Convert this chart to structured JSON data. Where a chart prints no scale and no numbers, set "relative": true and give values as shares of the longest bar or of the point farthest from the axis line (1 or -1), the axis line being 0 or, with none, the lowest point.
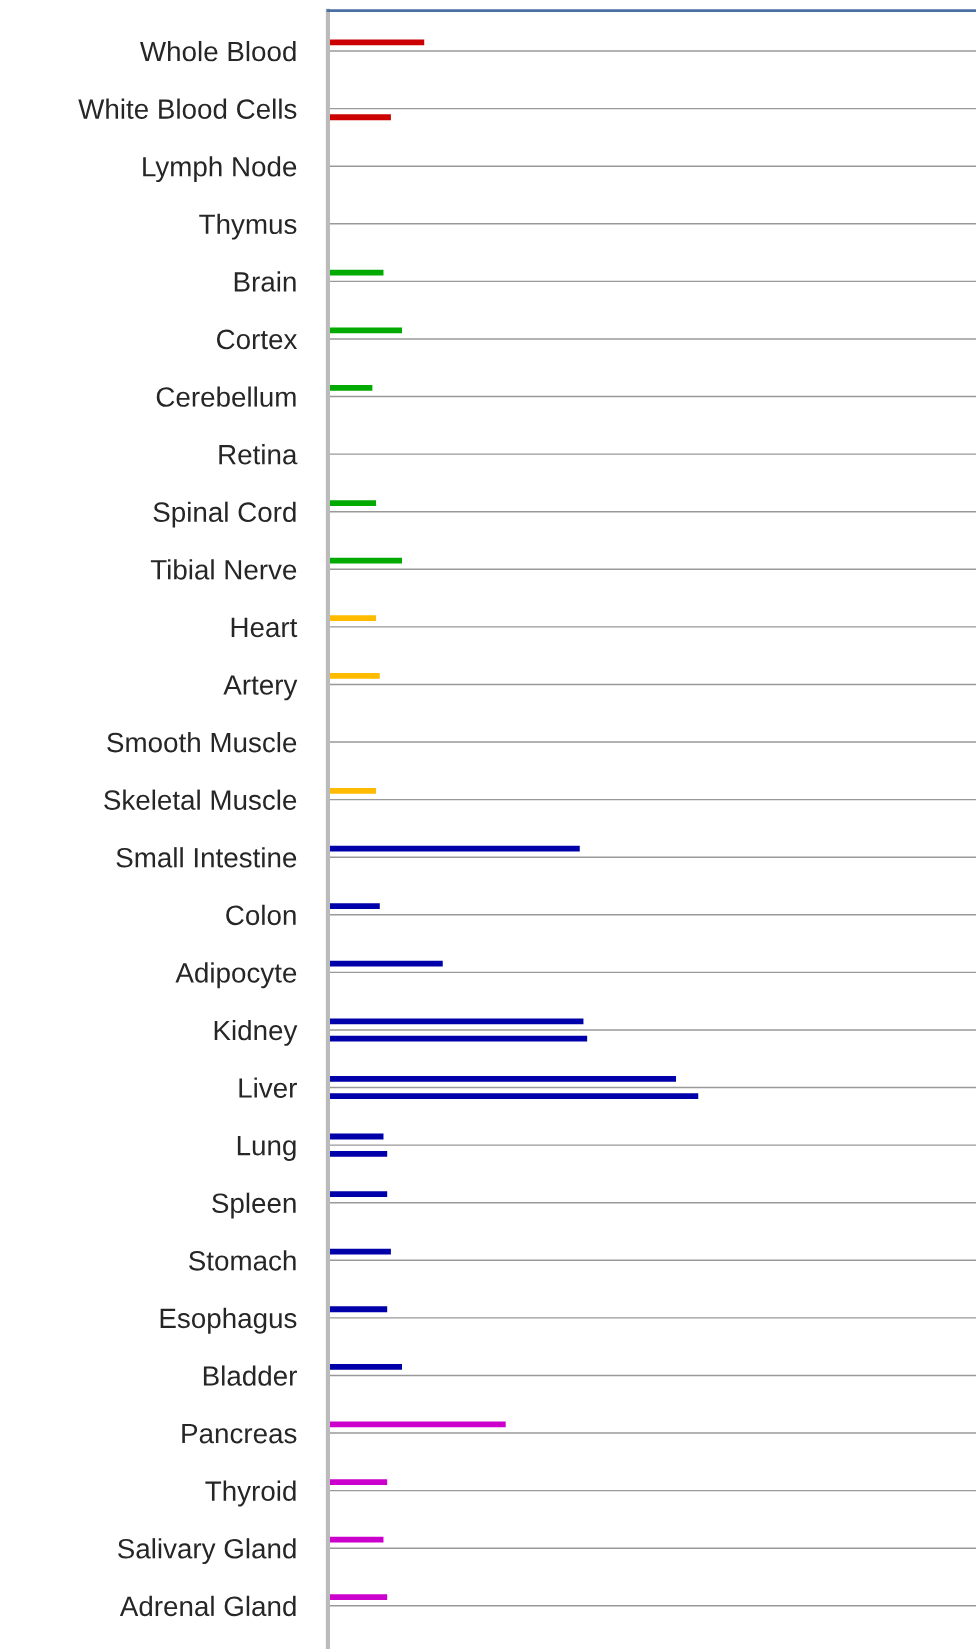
{
  "chart_data": {
    "type": "bar",
    "orientation": "horizontal",
    "relative": true,
    "grid": "y",
    "legend": false,
    "categories": [
      "Whole Blood",
      "White Blood Cells",
      "Lymph Node",
      "Thymus",
      "Brain",
      "Cortex",
      "Cerebellum",
      "Retina",
      "Spinal Cord",
      "Tibial Nerve",
      "Heart",
      "Artery",
      "Smooth Muscle",
      "Skeletal Muscle",
      "Small Intestine",
      "Colon",
      "Adipocyte",
      "Kidney",
      "Liver",
      "Lung",
      "Spleen",
      "Stomach",
      "Esophagus",
      "Bladder",
      "Pancreas",
      "Thyroid",
      "Salivary Gland",
      "Adrenal Gland"
    ],
    "series": [
      {
        "values": [
          0.26,
          null,
          null,
          null,
          0.15,
          0.2,
          0.12,
          null,
          0.13,
          0.2,
          0.13,
          0.14,
          null,
          0.13,
          0.68,
          0.14,
          0.31,
          0.69,
          0.94,
          0.15,
          0.16,
          0.17,
          0.16,
          0.2,
          0.48,
          0.16,
          0.15,
          0.16
        ],
        "colors": [
          "#cc0000",
          "#cc0000",
          "#cc0000",
          "#cc0000",
          "#00aa00",
          "#00aa00",
          "#00aa00",
          "#00aa00",
          "#00aa00",
          "#00aa00",
          "#ffbb00",
          "#ffbb00",
          "#ffbb00",
          "#ffbb00",
          "#0000aa",
          "#0000aa",
          "#0000aa",
          "#0000aa",
          "#0000aa",
          "#0000aa",
          "#0000aa",
          "#0000aa",
          "#0000aa",
          "#0000aa",
          "#cc00cc",
          "#cc00cc",
          "#cc00cc",
          "#cc00cc"
        ]
      },
      {
        "values": [
          null,
          0.17,
          null,
          null,
          null,
          null,
          null,
          null,
          null,
          null,
          null,
          null,
          null,
          null,
          null,
          null,
          null,
          0.7,
          1.0,
          0.16,
          null,
          null,
          null,
          null,
          null,
          null,
          null,
          null
        ],
        "colors": [
          "#cc0000",
          "#cc0000",
          "#cc0000",
          "#cc0000",
          "#00aa00",
          "#00aa00",
          "#00aa00",
          "#00aa00",
          "#00aa00",
          "#00aa00",
          "#ffbb00",
          "#ffbb00",
          "#ffbb00",
          "#ffbb00",
          "#0000aa",
          "#0000aa",
          "#0000aa",
          "#0000aa",
          "#0000aa",
          "#0000aa",
          "#0000aa",
          "#0000aa",
          "#0000aa",
          "#0000aa",
          "#cc00cc",
          "#cc00cc",
          "#cc00cc",
          "#cc00cc"
        ]
      }
    ]
  }
}
